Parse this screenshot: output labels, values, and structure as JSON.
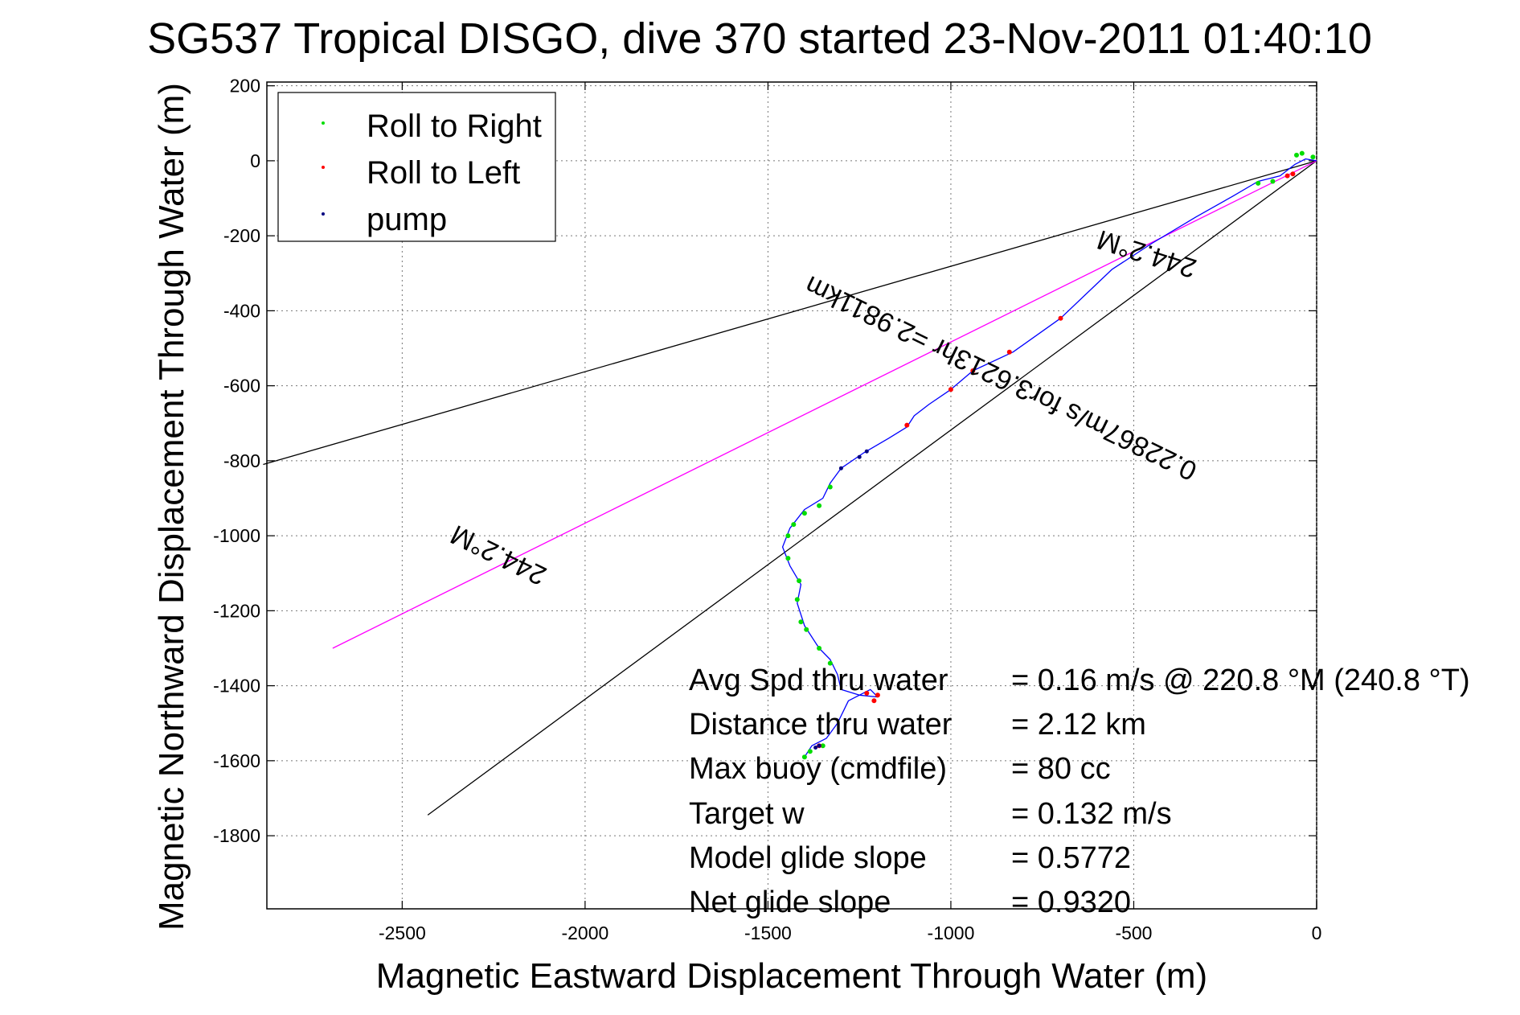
{
  "chart_data": {
    "type": "scatter",
    "title": "SG537 Tropical DISGO, dive 370 started 23-Nov-2011 01:40:10",
    "xlabel": "Magnetic Eastward Displacement Through Water (m)",
    "ylabel": "Magnetic Northward Displacement Through Water (m)",
    "xlim": [
      -2870,
      0
    ],
    "ylim": [
      -1995,
      210
    ],
    "x_ticks": [
      -2500,
      -2000,
      -1500,
      -1000,
      -500,
      0
    ],
    "y_ticks": [
      200,
      0,
      -200,
      -400,
      -600,
      -800,
      -1000,
      -1200,
      -1400,
      -1600,
      -1800
    ],
    "grid": true,
    "legend": {
      "position": "top-left",
      "entries": [
        {
          "label": "Roll to Right",
          "color": "#00dd00"
        },
        {
          "label": "Roll to Left",
          "color": "#ff0000"
        },
        {
          "label": "pump",
          "color": "#000080"
        }
      ]
    },
    "track": {
      "color": "#0000ff",
      "points": [
        [
          0,
          0
        ],
        [
          -30,
          5
        ],
        [
          -60,
          -10
        ],
        [
          -100,
          -40
        ],
        [
          -160,
          -55
        ],
        [
          -230,
          -95
        ],
        [
          -330,
          -150
        ],
        [
          -450,
          -220
        ],
        [
          -560,
          -290
        ],
        [
          -700,
          -420
        ],
        [
          -830,
          -510
        ],
        [
          -940,
          -560
        ],
        [
          -1000,
          -610
        ],
        [
          -1060,
          -650
        ],
        [
          -1100,
          -680
        ],
        [
          -1120,
          -710
        ],
        [
          -1170,
          -740
        ],
        [
          -1240,
          -780
        ],
        [
          -1300,
          -820
        ],
        [
          -1330,
          -860
        ],
        [
          -1350,
          -900
        ],
        [
          -1400,
          -930
        ],
        [
          -1440,
          -980
        ],
        [
          -1460,
          -1030
        ],
        [
          -1440,
          -1080
        ],
        [
          -1410,
          -1130
        ],
        [
          -1420,
          -1180
        ],
        [
          -1400,
          -1240
        ],
        [
          -1360,
          -1300
        ],
        [
          -1330,
          -1330
        ],
        [
          -1310,
          -1370
        ],
        [
          -1300,
          -1410
        ],
        [
          -1250,
          -1425
        ],
        [
          -1200,
          -1430
        ],
        [
          -1220,
          -1410
        ],
        [
          -1280,
          -1440
        ],
        [
          -1310,
          -1500
        ],
        [
          -1340,
          -1540
        ],
        [
          -1380,
          -1560
        ],
        [
          -1400,
          -1590
        ]
      ]
    },
    "roll_right": [
      [
        -10,
        10
      ],
      [
        -40,
        20
      ],
      [
        -55,
        15
      ],
      [
        -120,
        -55
      ],
      [
        -160,
        -60
      ],
      [
        -1330,
        -870
      ],
      [
        -1360,
        -920
      ],
      [
        -1400,
        -940
      ],
      [
        -1430,
        -970
      ],
      [
        -1445,
        -1000
      ],
      [
        -1445,
        -1060
      ],
      [
        -1415,
        -1120
      ],
      [
        -1420,
        -1170
      ],
      [
        -1410,
        -1230
      ],
      [
        -1395,
        -1250
      ],
      [
        -1360,
        -1300
      ],
      [
        -1330,
        -1340
      ],
      [
        -1350,
        -1560
      ],
      [
        -1385,
        -1575
      ],
      [
        -1400,
        -1590
      ]
    ],
    "roll_left": [
      [
        -65,
        -35
      ],
      [
        -80,
        -40
      ],
      [
        -700,
        -420
      ],
      [
        -840,
        -510
      ],
      [
        -940,
        -560
      ],
      [
        -1000,
        -610
      ],
      [
        -1120,
        -705
      ],
      [
        -1200,
        -1425
      ],
      [
        -1210,
        -1440
      ],
      [
        -1230,
        -1420
      ],
      [
        -1360,
        -1560
      ]
    ],
    "pump": [
      [
        -1230,
        -775
      ],
      [
        -1250,
        -790
      ],
      [
        -1300,
        -820
      ],
      [
        -1360,
        -1560
      ],
      [
        -1370,
        -1565
      ]
    ],
    "reference_lines": [
      {
        "color": "#000000",
        "points": [
          [
            0,
            0
          ],
          [
            -2880,
            -810
          ]
        ]
      },
      {
        "color": "#000000",
        "points": [
          [
            0,
            0
          ],
          [
            -2430,
            -1745
          ]
        ]
      },
      {
        "color": "#ff00ff",
        "points": [
          [
            0,
            0
          ],
          [
            -2690,
            -1300
          ]
        ]
      }
    ],
    "line_labels": [
      {
        "text": "244.2°M"
      },
      {
        "text": "0.22867m/s for3.6213hr =2.9811km"
      },
      {
        "text": "244.2°M"
      }
    ],
    "annotations": [
      {
        "label": "Avg Spd thru water",
        "value": "=  0.16 m/s @ 220.8 °M (240.8 °T)"
      },
      {
        "label": "Distance thru water",
        "value": "=  2.12 km"
      },
      {
        "label": "Max buoy (cmdfile)",
        "value": "= 80 cc"
      },
      {
        "label": "Target w",
        "value": "= 0.132 m/s"
      },
      {
        "label": "Model glide slope",
        "value": "= 0.5772"
      },
      {
        "label": "Net glide slope",
        "value": "= 0.9320"
      }
    ]
  }
}
